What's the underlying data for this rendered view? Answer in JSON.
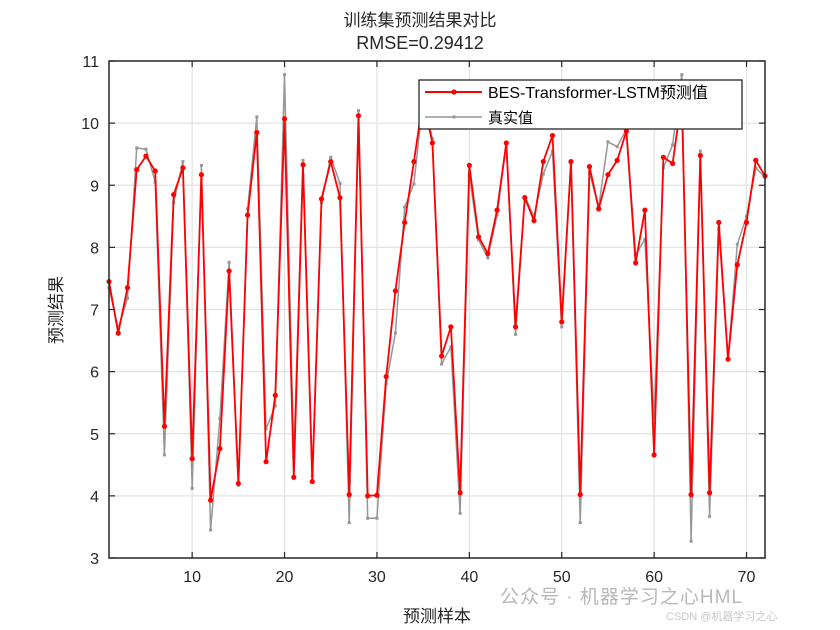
{
  "chart_data": {
    "type": "line",
    "title": "训练集预测结果对比",
    "subtitle": "RMSE=0.29412",
    "xlabel": "预测样本",
    "ylabel": "预测结果",
    "xlim": [
      1,
      72
    ],
    "ylim": [
      3,
      11
    ],
    "xticks": [
      10,
      20,
      30,
      40,
      50,
      60,
      70
    ],
    "yticks": [
      3,
      4,
      5,
      6,
      7,
      8,
      9,
      10,
      11
    ],
    "grid": true,
    "legend_position": "upper right",
    "x": [
      1,
      2,
      3,
      4,
      5,
      6,
      7,
      8,
      9,
      10,
      11,
      12,
      13,
      14,
      15,
      16,
      17,
      18,
      19,
      20,
      21,
      22,
      23,
      24,
      25,
      26,
      27,
      28,
      29,
      30,
      31,
      32,
      33,
      34,
      35,
      36,
      37,
      38,
      39,
      40,
      41,
      42,
      43,
      44,
      45,
      46,
      47,
      48,
      49,
      50,
      51,
      52,
      53,
      54,
      55,
      56,
      57,
      58,
      59,
      60,
      61,
      62,
      63,
      64,
      65,
      66,
      67,
      68,
      69,
      70,
      71,
      72
    ],
    "series": [
      {
        "name": "BES-Transformer-LSTM预测值",
        "color": "#ff0000",
        "marker": "circle",
        "values": [
          7.45,
          6.62,
          7.35,
          9.25,
          9.47,
          9.23,
          5.12,
          8.85,
          9.28,
          4.6,
          9.17,
          3.93,
          4.76,
          7.62,
          4.2,
          8.52,
          9.85,
          4.55,
          5.62,
          10.07,
          4.3,
          9.33,
          4.23,
          8.78,
          9.38,
          8.8,
          4.02,
          10.12,
          4.0,
          4.01,
          5.92,
          7.3,
          8.4,
          9.38,
          10.38,
          9.68,
          6.25,
          6.72,
          4.05,
          9.32,
          8.17,
          7.9,
          8.6,
          9.68,
          6.72,
          8.8,
          8.43,
          9.38,
          9.8,
          6.8,
          9.38,
          4.02,
          9.3,
          8.62,
          9.17,
          9.4,
          9.87,
          7.75,
          8.6,
          4.66,
          9.45,
          9.35,
          10.4,
          4.02,
          9.48,
          4.05,
          8.4,
          6.2,
          7.72,
          8.4,
          9.4,
          9.15
        ]
      },
      {
        "name": "真实值",
        "color": "#969696",
        "marker": "square",
        "values": [
          7.35,
          6.7,
          7.18,
          9.6,
          9.58,
          9.05,
          4.66,
          8.72,
          9.38,
          4.12,
          9.32,
          3.45,
          5.25,
          7.76,
          4.17,
          8.62,
          10.1,
          5.08,
          5.45,
          10.78,
          4.62,
          9.4,
          4.32,
          8.72,
          9.45,
          9.03,
          3.57,
          10.2,
          3.64,
          3.64,
          5.8,
          6.62,
          8.65,
          9.02,
          10.4,
          9.75,
          6.12,
          6.4,
          3.72,
          9.17,
          8.12,
          7.83,
          8.52,
          9.67,
          6.6,
          8.82,
          8.5,
          9.18,
          9.55,
          6.72,
          9.38,
          3.57,
          9.2,
          8.65,
          9.7,
          9.62,
          9.9,
          7.88,
          8.13,
          5.25,
          9.28,
          9.65,
          10.78,
          3.27,
          9.55,
          3.67,
          8.3,
          6.2,
          8.05,
          8.5,
          9.28,
          9.13
        ]
      }
    ]
  },
  "watermark": {
    "text": "公众号 · 机器学习之心HML",
    "sub": "CSDN @机器学习之心"
  }
}
